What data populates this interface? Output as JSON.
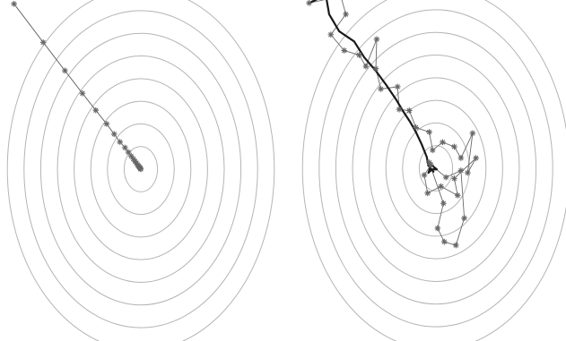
{
  "colors": {
    "background": "#ffffff",
    "contour": "#b5b5b5",
    "path": "#6a6a6a",
    "marker": "#666666",
    "average_path": "#1a1a1a"
  },
  "marker_icon": "asterisk-marker",
  "panels": [
    {
      "name": "gradient-descent-panel",
      "center": [
        0,
        0
      ],
      "contour_levels": [
        1,
        2,
        3,
        4,
        5,
        6,
        7,
        8
      ],
      "radius_ratio_y_to_x": 1.36,
      "path": [
        [
          -7.6,
          7.3
        ],
        [
          -5.85,
          5.6
        ],
        [
          -4.55,
          4.35
        ],
        [
          -3.5,
          3.35
        ],
        [
          -2.7,
          2.6
        ],
        [
          -2.05,
          2.0
        ],
        [
          -1.6,
          1.55
        ],
        [
          -1.25,
          1.2
        ],
        [
          -0.95,
          0.95
        ],
        [
          -0.75,
          0.75
        ],
        [
          -0.58,
          0.58
        ],
        [
          -0.45,
          0.45
        ],
        [
          -0.35,
          0.35
        ],
        [
          -0.27,
          0.27
        ],
        [
          -0.2,
          0.2
        ],
        [
          -0.15,
          0.15
        ],
        [
          -0.1,
          0.1
        ],
        [
          -0.06,
          0.06
        ],
        [
          -0.03,
          0.03
        ],
        [
          0.0,
          0.0
        ]
      ]
    },
    {
      "name": "stochastic-gradient-panel",
      "center": [
        0,
        0
      ],
      "contour_levels": [
        1,
        2,
        3,
        4,
        5,
        6,
        7,
        8
      ],
      "radius_ratio_y_to_x": 1.36,
      "path": [
        [
          -7.6,
          7.3
        ],
        [
          -5.7,
          7.6
        ],
        [
          -5.4,
          6.8
        ],
        [
          -6.3,
          5.9
        ],
        [
          -5.5,
          5.2
        ],
        [
          -4.6,
          5.0
        ],
        [
          -4.2,
          4.5
        ],
        [
          -3.55,
          5.7
        ],
        [
          -3.6,
          4.4
        ],
        [
          -3.3,
          3.5
        ],
        [
          -2.3,
          3.6
        ],
        [
          -2.2,
          2.6
        ],
        [
          -1.6,
          2.55
        ],
        [
          -1.2,
          1.8
        ],
        [
          -0.4,
          1.6
        ],
        [
          -0.2,
          0.8
        ],
        [
          0.4,
          1.15
        ],
        [
          1.1,
          0.95
        ],
        [
          1.5,
          0.45
        ],
        [
          2.2,
          1.55
        ],
        [
          1.9,
          -0.2
        ],
        [
          2.4,
          0.45
        ],
        [
          1.1,
          -0.45
        ],
        [
          1.3,
          -1.2
        ],
        [
          0.3,
          -0.8
        ],
        [
          -0.5,
          -1.1
        ],
        [
          -0.7,
          -0.3
        ],
        [
          -0.3,
          0.15
        ],
        [
          0.6,
          -0.4
        ],
        [
          1.5,
          -0.1
        ],
        [
          1.7,
          -2.2
        ],
        [
          1.2,
          -3.4
        ],
        [
          0.5,
          -3.25
        ],
        [
          0.1,
          -2.65
        ],
        [
          0.45,
          -1.55
        ],
        [
          -0.4,
          0.25
        ]
      ],
      "average_path": [
        [
          -7.6,
          7.3
        ],
        [
          -6.6,
          7.65
        ],
        [
          -6.4,
          6.8
        ],
        [
          -5.8,
          6.05
        ],
        [
          -4.9,
          5.6
        ],
        [
          -4.3,
          4.9
        ],
        [
          -3.6,
          4.3
        ],
        [
          -3.0,
          3.7
        ],
        [
          -2.4,
          3.05
        ],
        [
          -1.95,
          2.5
        ],
        [
          -1.55,
          2.05
        ],
        [
          -1.2,
          1.6
        ],
        [
          -0.85,
          1.05
        ],
        [
          -0.55,
          0.5
        ],
        [
          -0.45,
          0.1
        ],
        [
          -0.2,
          0.1
        ],
        [
          0.05,
          -0.05
        ],
        [
          -0.25,
          -0.05
        ],
        [
          -0.45,
          -0.2
        ],
        [
          -0.35,
          0.0
        ],
        [
          -0.15,
          -0.15
        ]
      ]
    }
  ]
}
